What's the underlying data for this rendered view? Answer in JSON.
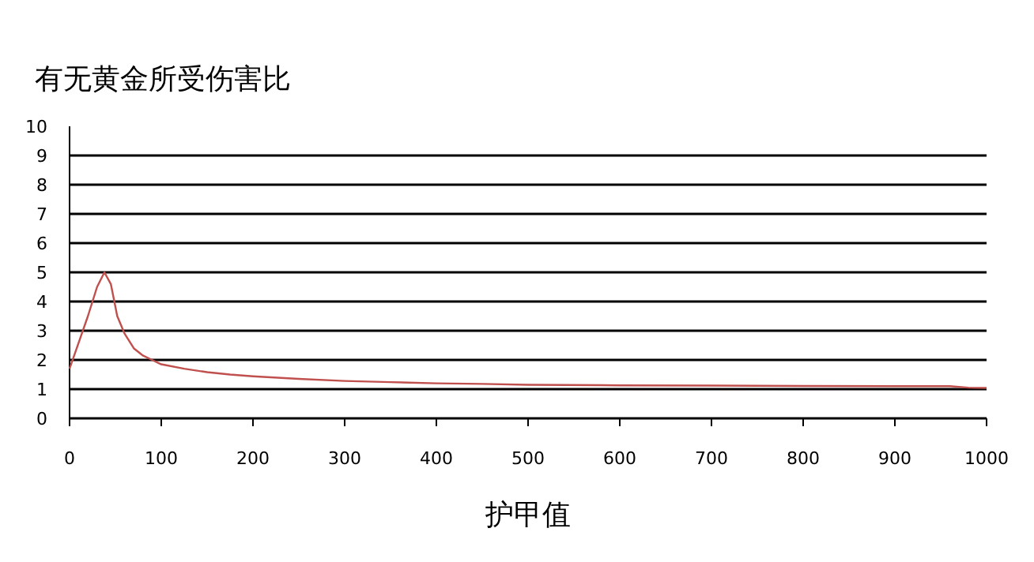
{
  "chart_data": {
    "type": "line",
    "title": "有无黄金所受伤害比",
    "xlabel": "护甲值",
    "series": [
      {
        "color": "#c0504d",
        "x": [
          0,
          10,
          20,
          30,
          38,
          45,
          52,
          60,
          70,
          80,
          90,
          100,
          125,
          150,
          175,
          200,
          250,
          300,
          350,
          400,
          450,
          500,
          600,
          700,
          800,
          900,
          960,
          980,
          1000
        ],
        "values": [
          1.7,
          2.6,
          3.5,
          4.5,
          5.0,
          4.6,
          3.5,
          2.9,
          2.4,
          2.15,
          2.0,
          1.85,
          1.7,
          1.58,
          1.5,
          1.44,
          1.35,
          1.28,
          1.24,
          1.2,
          1.18,
          1.15,
          1.13,
          1.12,
          1.11,
          1.1,
          1.1,
          1.05,
          1.04
        ]
      }
    ],
    "xlim": [
      0,
      1000
    ],
    "xticks": [
      0,
      100,
      200,
      300,
      400,
      500,
      600,
      700,
      800,
      900,
      1000
    ],
    "ylim": [
      0,
      10
    ],
    "yticks": [
      0,
      1,
      2,
      3,
      4,
      5,
      6,
      7,
      8,
      9,
      10
    ],
    "grid": "y"
  }
}
